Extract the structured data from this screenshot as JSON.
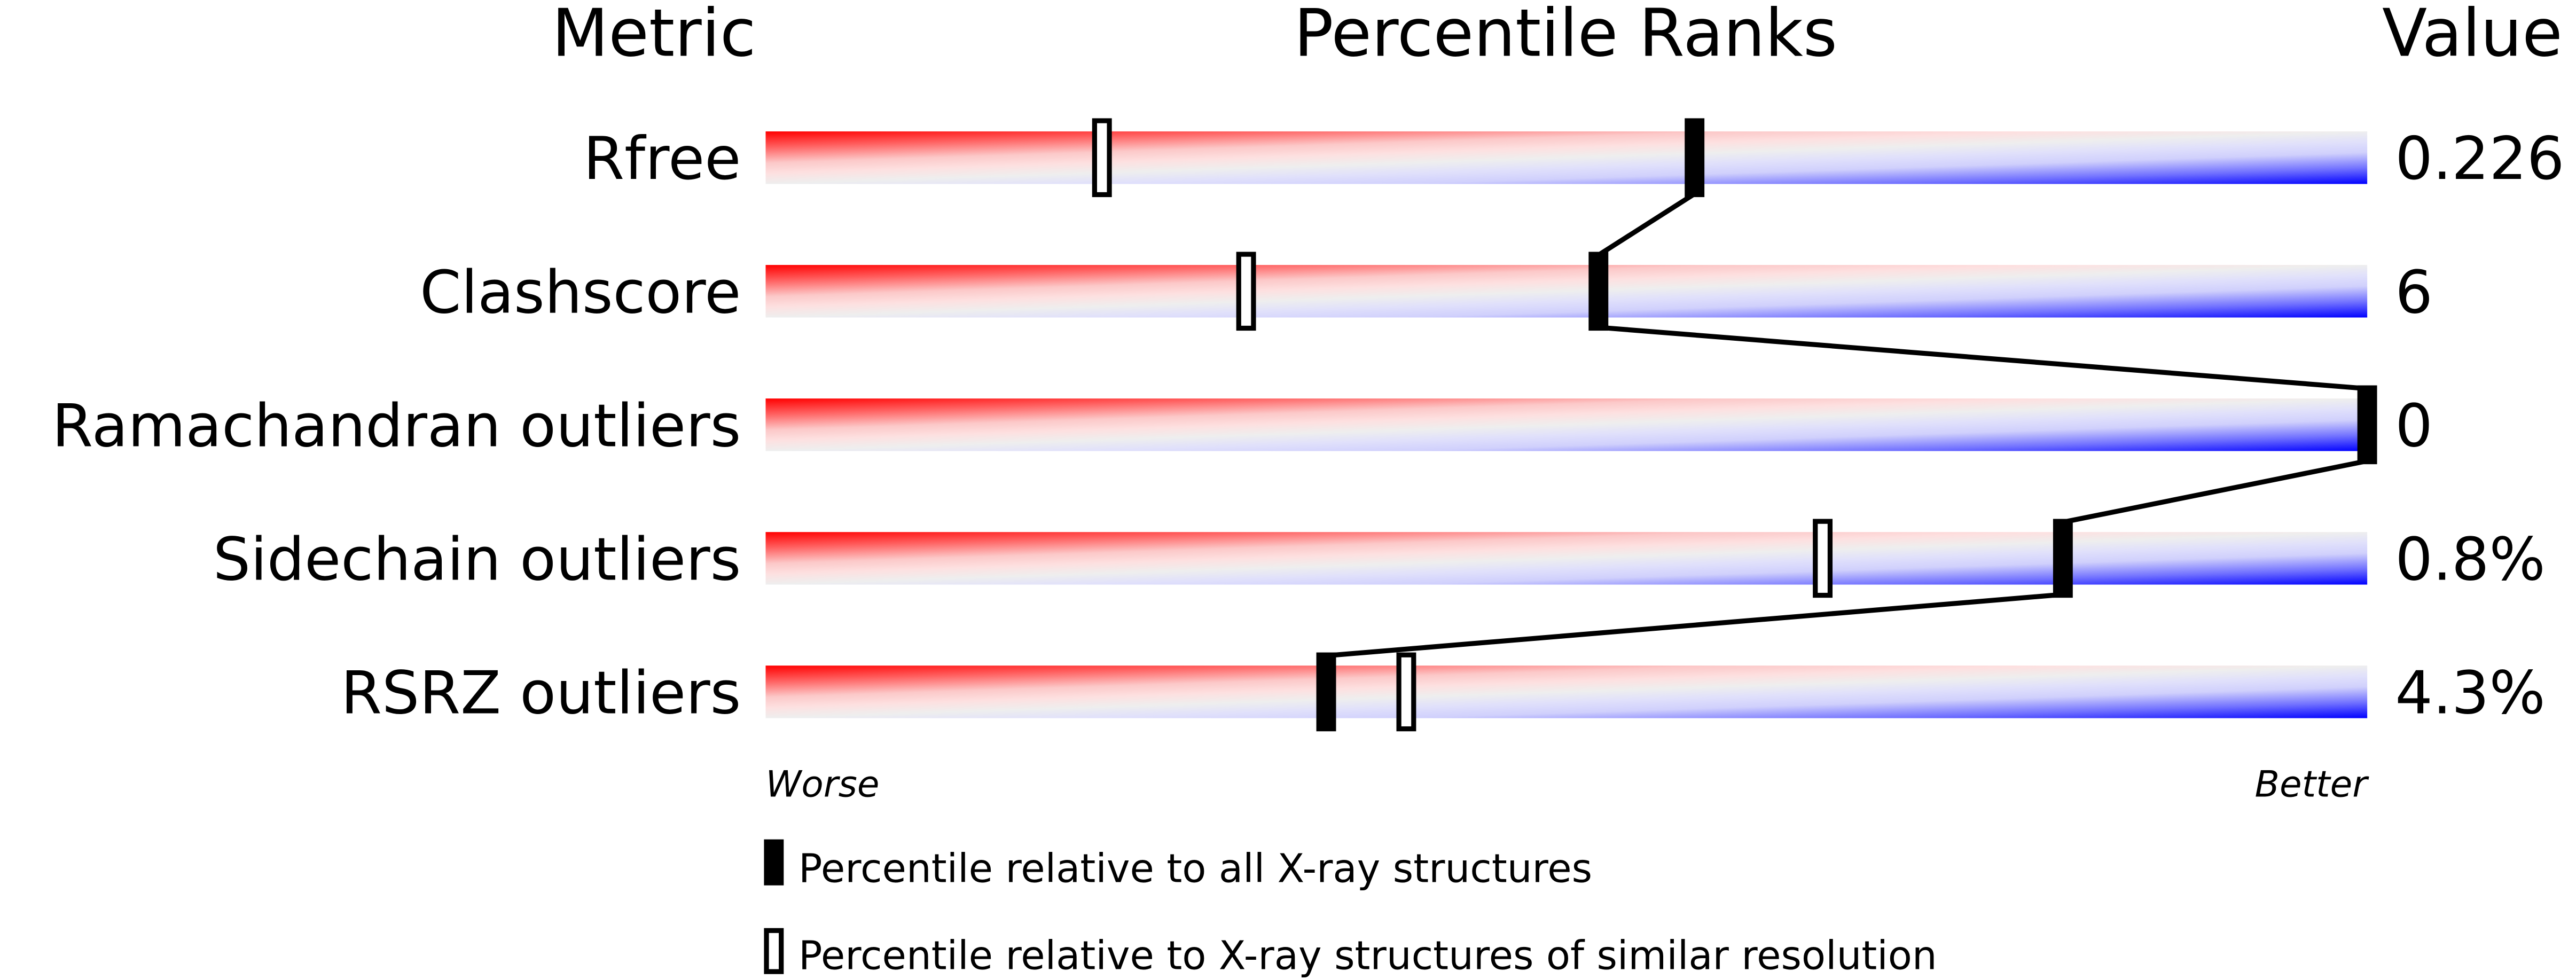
{
  "chart_data": {
    "type": "bar",
    "headers": {
      "metric": "Metric",
      "ranks": "Percentile Ranks",
      "value": "Value"
    },
    "metrics": [
      {
        "name": "Rfree",
        "value": "0.226",
        "percentile_all": 58,
        "percentile_similar": 21
      },
      {
        "name": "Clashscore",
        "value": "6",
        "percentile_all": 52,
        "percentile_similar": 30
      },
      {
        "name": "Ramachandran outliers",
        "value": "0",
        "percentile_all": 100,
        "percentile_similar": null
      },
      {
        "name": "Sidechain outliers",
        "value": "0.8%",
        "percentile_all": 81,
        "percentile_similar": 66
      },
      {
        "name": "RSRZ outliers",
        "value": "4.3%",
        "percentile_all": 35,
        "percentile_similar": 40
      }
    ],
    "xlim": [
      0,
      100
    ],
    "axis_labels": {
      "worse": "Worse",
      "better": "Better"
    },
    "legend": {
      "all": "Percentile relative to all X-ray structures",
      "similar": "Percentile relative to X-ray structures of similar resolution"
    },
    "colors": {
      "worse": "#ff0000",
      "mid": "#eeeeee",
      "better": "#0000ff",
      "marker": "#000000"
    }
  }
}
